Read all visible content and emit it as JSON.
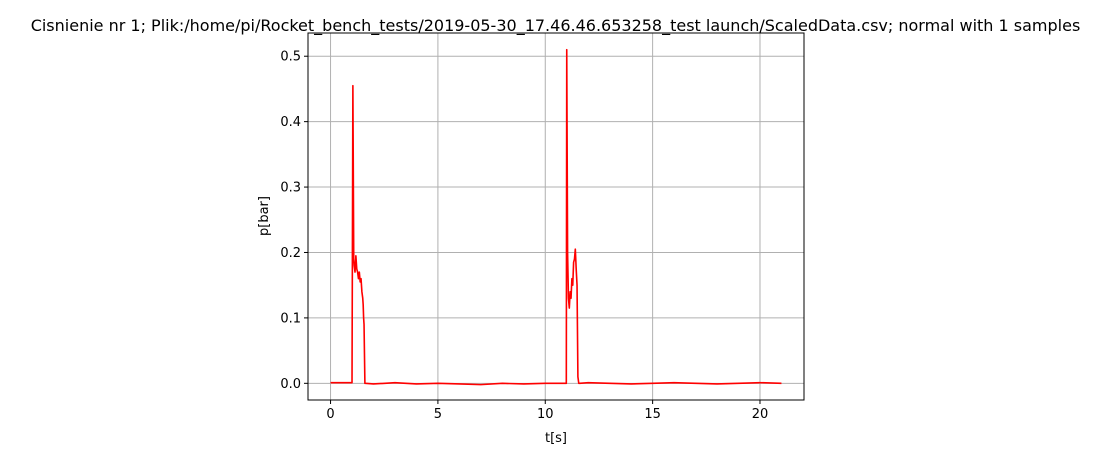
{
  "chart_data": {
    "type": "line",
    "title": "Cisnienie nr 1; Plik:/home/pi/Rocket_bench_tests/2019-05-30_17.46.46.653258_test launch/ScaledData.csv; normal with 1 samples",
    "xlabel": "t[s]",
    "ylabel": "p[bar]",
    "xlim": [
      -1.05,
      22.05
    ],
    "ylim": [
      -0.0255,
      0.5355
    ],
    "xticks": [
      0,
      5,
      10,
      15,
      20
    ],
    "yticks": [
      0.0,
      0.1,
      0.2,
      0.3,
      0.4,
      0.5
    ],
    "xtick_labels": [
      "0",
      "5",
      "10",
      "15",
      "20"
    ],
    "ytick_labels": [
      "0.0",
      "0.1",
      "0.2",
      "0.3",
      "0.4",
      "0.5"
    ],
    "grid": true,
    "series": [
      {
        "color": "#ff0000",
        "x": [
          0.0,
          0.5,
          1.0,
          1.04,
          1.08,
          1.1,
          1.14,
          1.18,
          1.22,
          1.26,
          1.3,
          1.34,
          1.38,
          1.42,
          1.46,
          1.5,
          1.52,
          1.54,
          1.56,
          1.6,
          1.62,
          2.0,
          3.0,
          4.0,
          5.0,
          6.0,
          7.0,
          8.0,
          9.0,
          10.0,
          10.9,
          10.98,
          11.0,
          11.04,
          11.08,
          11.12,
          11.16,
          11.2,
          11.24,
          11.28,
          11.32,
          11.36,
          11.4,
          11.44,
          11.48,
          11.52,
          11.56,
          11.6,
          12.0,
          13.0,
          14.0,
          15.0,
          16.0,
          17.0,
          18.0,
          19.0,
          20.0,
          21.0
        ],
        "y": [
          0.001,
          0.001,
          0.001,
          0.455,
          0.19,
          0.18,
          0.17,
          0.195,
          0.175,
          0.17,
          0.16,
          0.17,
          0.155,
          0.16,
          0.14,
          0.13,
          0.12,
          0.1,
          0.09,
          0.0,
          0.0,
          -0.001,
          0.001,
          -0.001,
          0.0,
          -0.001,
          -0.002,
          0.0,
          -0.001,
          0.0,
          0.0,
          0.0,
          0.51,
          0.2,
          0.13,
          0.115,
          0.14,
          0.13,
          0.16,
          0.15,
          0.185,
          0.19,
          0.205,
          0.175,
          0.15,
          0.01,
          0.0,
          0.0,
          0.001,
          0.0,
          -0.001,
          0.0,
          0.001,
          0.0,
          -0.001,
          0.0,
          0.001,
          0.0
        ]
      }
    ]
  }
}
